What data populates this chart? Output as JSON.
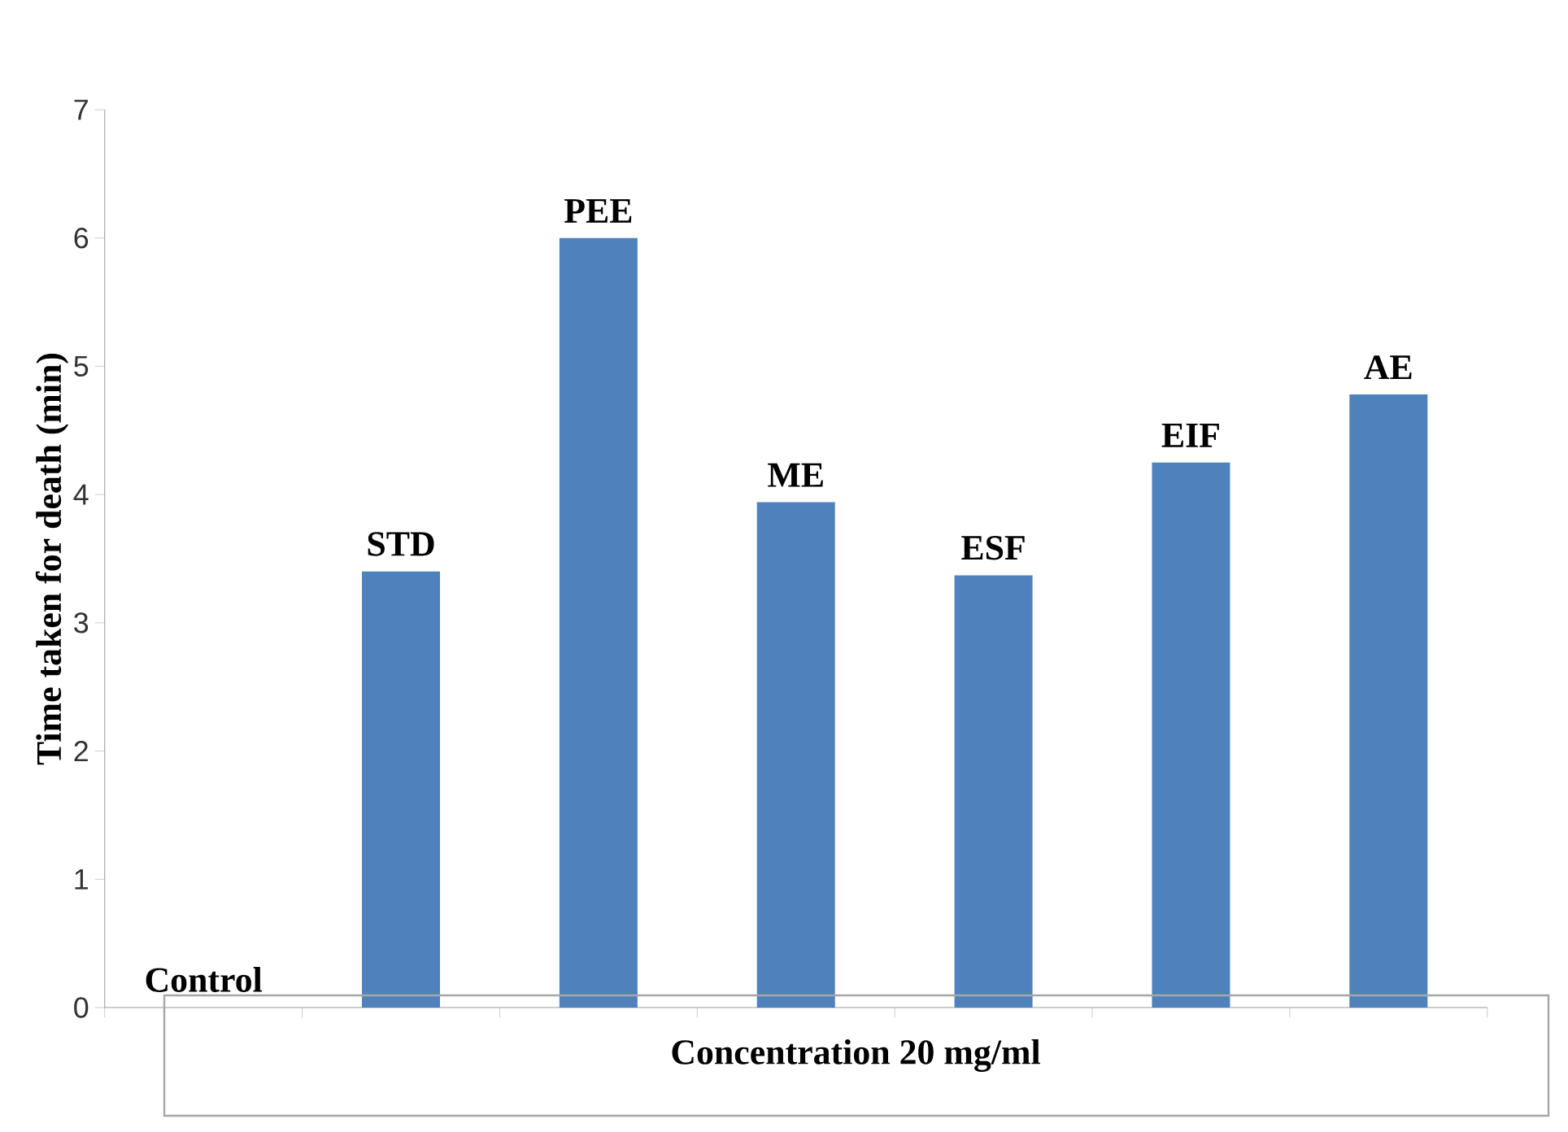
{
  "chart_data": {
    "type": "bar",
    "xlabel": "Concentration 20 mg/ml",
    "ylabel": "Time taken for death (min)",
    "categories": [
      "Control",
      "STD",
      "PEE",
      "ME",
      "ESF",
      "EIF",
      "AE"
    ],
    "values": [
      0,
      3.4,
      6.0,
      3.94,
      3.37,
      4.25,
      4.78
    ],
    "color": "#4f81bd",
    "ylim": [
      0,
      7
    ],
    "yticks": [
      0,
      1,
      2,
      3,
      4,
      5,
      6,
      7
    ],
    "tick_labels": "y",
    "grid": false
  }
}
